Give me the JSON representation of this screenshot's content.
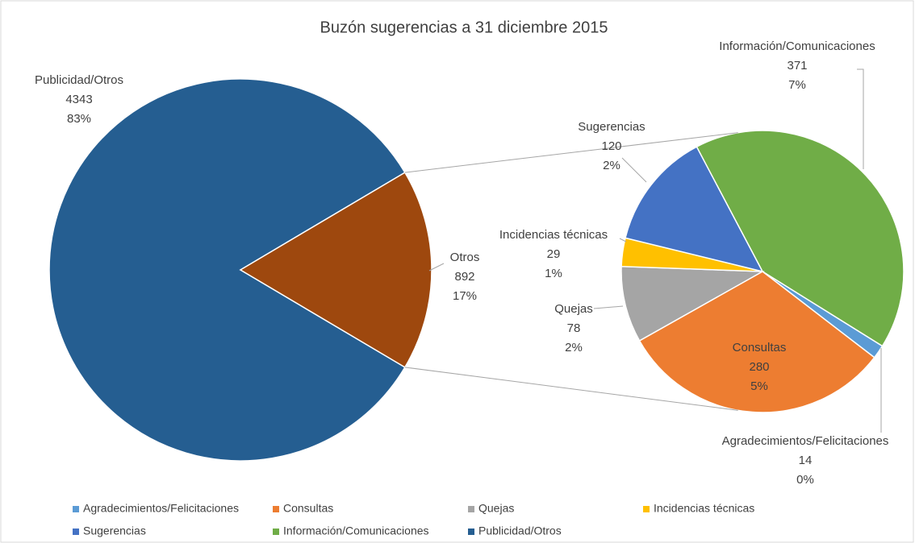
{
  "chart_data": {
    "type": "pie-of-pie",
    "title": "Buzón sugerencias a 31 diciembre 2015",
    "categories": [
      "Agradecimientos/Felicitaciones",
      "Consultas",
      "Quejas",
      "Incidencias técnicas",
      "Sugerencias",
      "Información/Comunicaciones",
      "Publicidad/Otros"
    ],
    "values": [
      14,
      280,
      78,
      29,
      120,
      371,
      4343
    ],
    "percents": [
      {
        "value": 0,
        "label": "0%"
      },
      {
        "value": 5,
        "label": "5%"
      },
      {
        "value": 2,
        "label": "2%"
      },
      {
        "value": 1,
        "label": "1%"
      },
      {
        "value": 2,
        "label": "2%"
      },
      {
        "value": 7,
        "label": "7%"
      },
      {
        "value": 83,
        "label": "83%"
      }
    ],
    "colors": [
      "#5b9bd5",
      "#ed7d31",
      "#a5a5a5",
      "#ffc000",
      "#4472c4",
      "#70ad47",
      "#255e91"
    ],
    "other": {
      "name": "Otros",
      "value": 892,
      "percent": {
        "value": 17,
        "label": "17%"
      },
      "color": "#9e480e"
    },
    "legend": "bottom"
  }
}
